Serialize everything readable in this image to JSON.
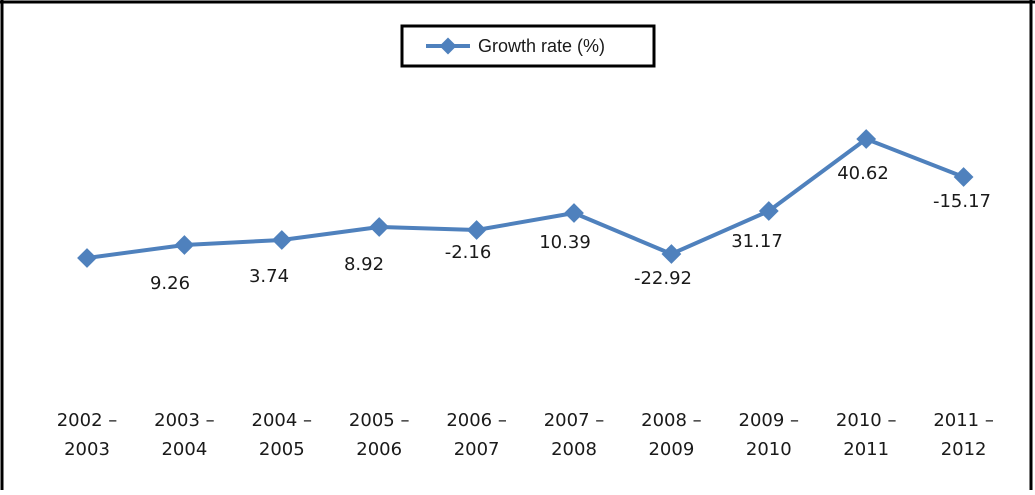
{
  "chart_data": {
    "type": "line",
    "categories": [
      [
        "2002 –",
        "2003"
      ],
      [
        "2003 –",
        "2004"
      ],
      [
        "2004 –",
        "2005"
      ],
      [
        "2005 –",
        "2006"
      ],
      [
        "2006 –",
        "2007"
      ],
      [
        "2007 –",
        "2008"
      ],
      [
        "2008 –",
        "2009"
      ],
      [
        "2009 –",
        "2010"
      ],
      [
        "2010 –",
        "2011"
      ],
      [
        "2011 –",
        "2012"
      ]
    ],
    "series": [
      {
        "name": "Growth rate (%)",
        "values": [
          0,
          9.26,
          3.74,
          8.92,
          -2.16,
          10.39,
          -22.92,
          31.17,
          40.62,
          -15.17
        ],
        "data_labels": [
          "",
          "9.26",
          "3.74",
          "8.92",
          "-2.16",
          "10.39",
          "-22.92",
          "31.17",
          "40.62",
          "-15.17"
        ],
        "color": "#4f81bd"
      }
    ],
    "legend_position": "top-center",
    "grid": false
  }
}
